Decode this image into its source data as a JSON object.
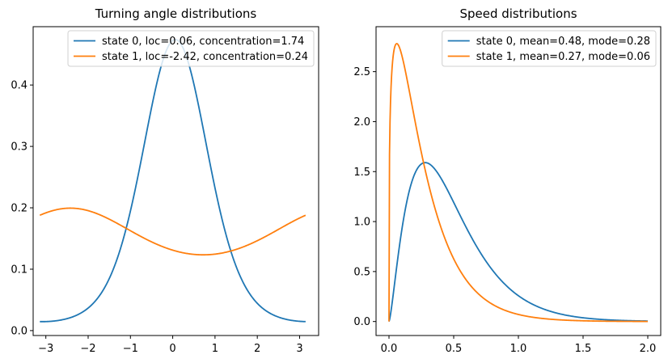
{
  "chart_data": [
    {
      "type": "line",
      "title": "Turning angle distributions",
      "xlabel": "",
      "ylabel": "",
      "xlim": [
        -3.3,
        3.45
      ],
      "ylim": [
        -0.008,
        0.495
      ],
      "xticks": [
        -3,
        -2,
        -1,
        0,
        1,
        2,
        3
      ],
      "xtick_labels": [
        "−3",
        "−2",
        "−1",
        "0",
        "1",
        "2",
        "3"
      ],
      "yticks": [
        0.0,
        0.1,
        0.2,
        0.3,
        0.4
      ],
      "ytick_labels": [
        "0.0",
        "0.1",
        "0.2",
        "0.3",
        "0.4"
      ],
      "grid": false,
      "legend_position": "top-right",
      "distribution": "von_mises",
      "x_range": [
        -3.14159,
        3.14159
      ],
      "series": [
        {
          "name": "state 0, loc=0.06, concentration=1.74",
          "color": "#1f77b4",
          "loc": 0.06,
          "concentration": 1.74
        },
        {
          "name": "state 1, loc=-2.42, concentration=0.24",
          "color": "#ff7f0e",
          "loc": -2.42,
          "concentration": 0.24
        }
      ]
    },
    {
      "type": "line",
      "title": "Speed distributions",
      "xlabel": "",
      "ylabel": "",
      "xlim": [
        -0.1,
        2.1
      ],
      "ylim": [
        -0.14,
        2.95
      ],
      "xticks": [
        0.0,
        0.5,
        1.0,
        1.5,
        2.0
      ],
      "xtick_labels": [
        "0.0",
        "0.5",
        "1.0",
        "1.5",
        "2.0"
      ],
      "yticks": [
        0.0,
        0.5,
        1.0,
        1.5,
        2.0,
        2.5
      ],
      "ytick_labels": [
        "0.0",
        "0.5",
        "1.0",
        "1.5",
        "2.0",
        "2.5"
      ],
      "grid": false,
      "legend_position": "top-right",
      "distribution": "gamma",
      "x_range": [
        0,
        2
      ],
      "series": [
        {
          "name": "state 0, mean=0.48, mode=0.28",
          "color": "#1f77b4",
          "mean": 0.48,
          "mode": 0.28
        },
        {
          "name": "state 1, mean=0.27, mode=0.06",
          "color": "#ff7f0e",
          "mean": 0.27,
          "mode": 0.06
        }
      ]
    }
  ]
}
